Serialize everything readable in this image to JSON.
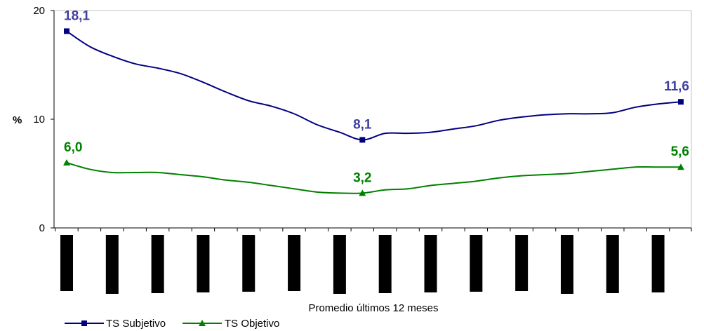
{
  "chart_data": {
    "type": "line",
    "ylabel": "%",
    "xlabel": "Promedio últimos 12 meses",
    "ylim": [
      0,
      20
    ],
    "yticks": [
      "0",
      "10",
      "20"
    ],
    "grid": false,
    "legend_position": "bottom-left",
    "x_tick_labels_visible": false,
    "series": [
      {
        "name": "TS Subjetivo",
        "color": "#000080",
        "label_color": "#3f3f9f",
        "marker": "square",
        "values": [
          18.1,
          16.7,
          15.8,
          15.1,
          14.7,
          14.2,
          13.4,
          12.5,
          11.7,
          11.2,
          10.5,
          9.5,
          8.8,
          8.1,
          8.7,
          8.7,
          8.8,
          9.1,
          9.4,
          9.9,
          10.2,
          10.4,
          10.5,
          10.5,
          10.6,
          11.1,
          11.4,
          11.6
        ],
        "labeled_points": [
          {
            "index": 0,
            "text": "18,1"
          },
          {
            "index": 13,
            "text": "8,1"
          },
          {
            "index": 27,
            "text": "11,6"
          }
        ]
      },
      {
        "name": "TS Objetivo",
        "color": "#008000",
        "label_color": "#008000",
        "marker": "triangle",
        "values": [
          6.0,
          5.4,
          5.1,
          5.1,
          5.1,
          4.9,
          4.7,
          4.4,
          4.2,
          3.9,
          3.6,
          3.3,
          3.2,
          3.2,
          3.5,
          3.6,
          3.9,
          4.1,
          4.3,
          4.6,
          4.8,
          4.9,
          5.0,
          5.2,
          5.4,
          5.6,
          5.6,
          5.6
        ],
        "labeled_points": [
          {
            "index": 0,
            "text": "6,0"
          },
          {
            "index": 13,
            "text": "3,2"
          },
          {
            "index": 27,
            "text": "5,6"
          }
        ]
      }
    ]
  }
}
